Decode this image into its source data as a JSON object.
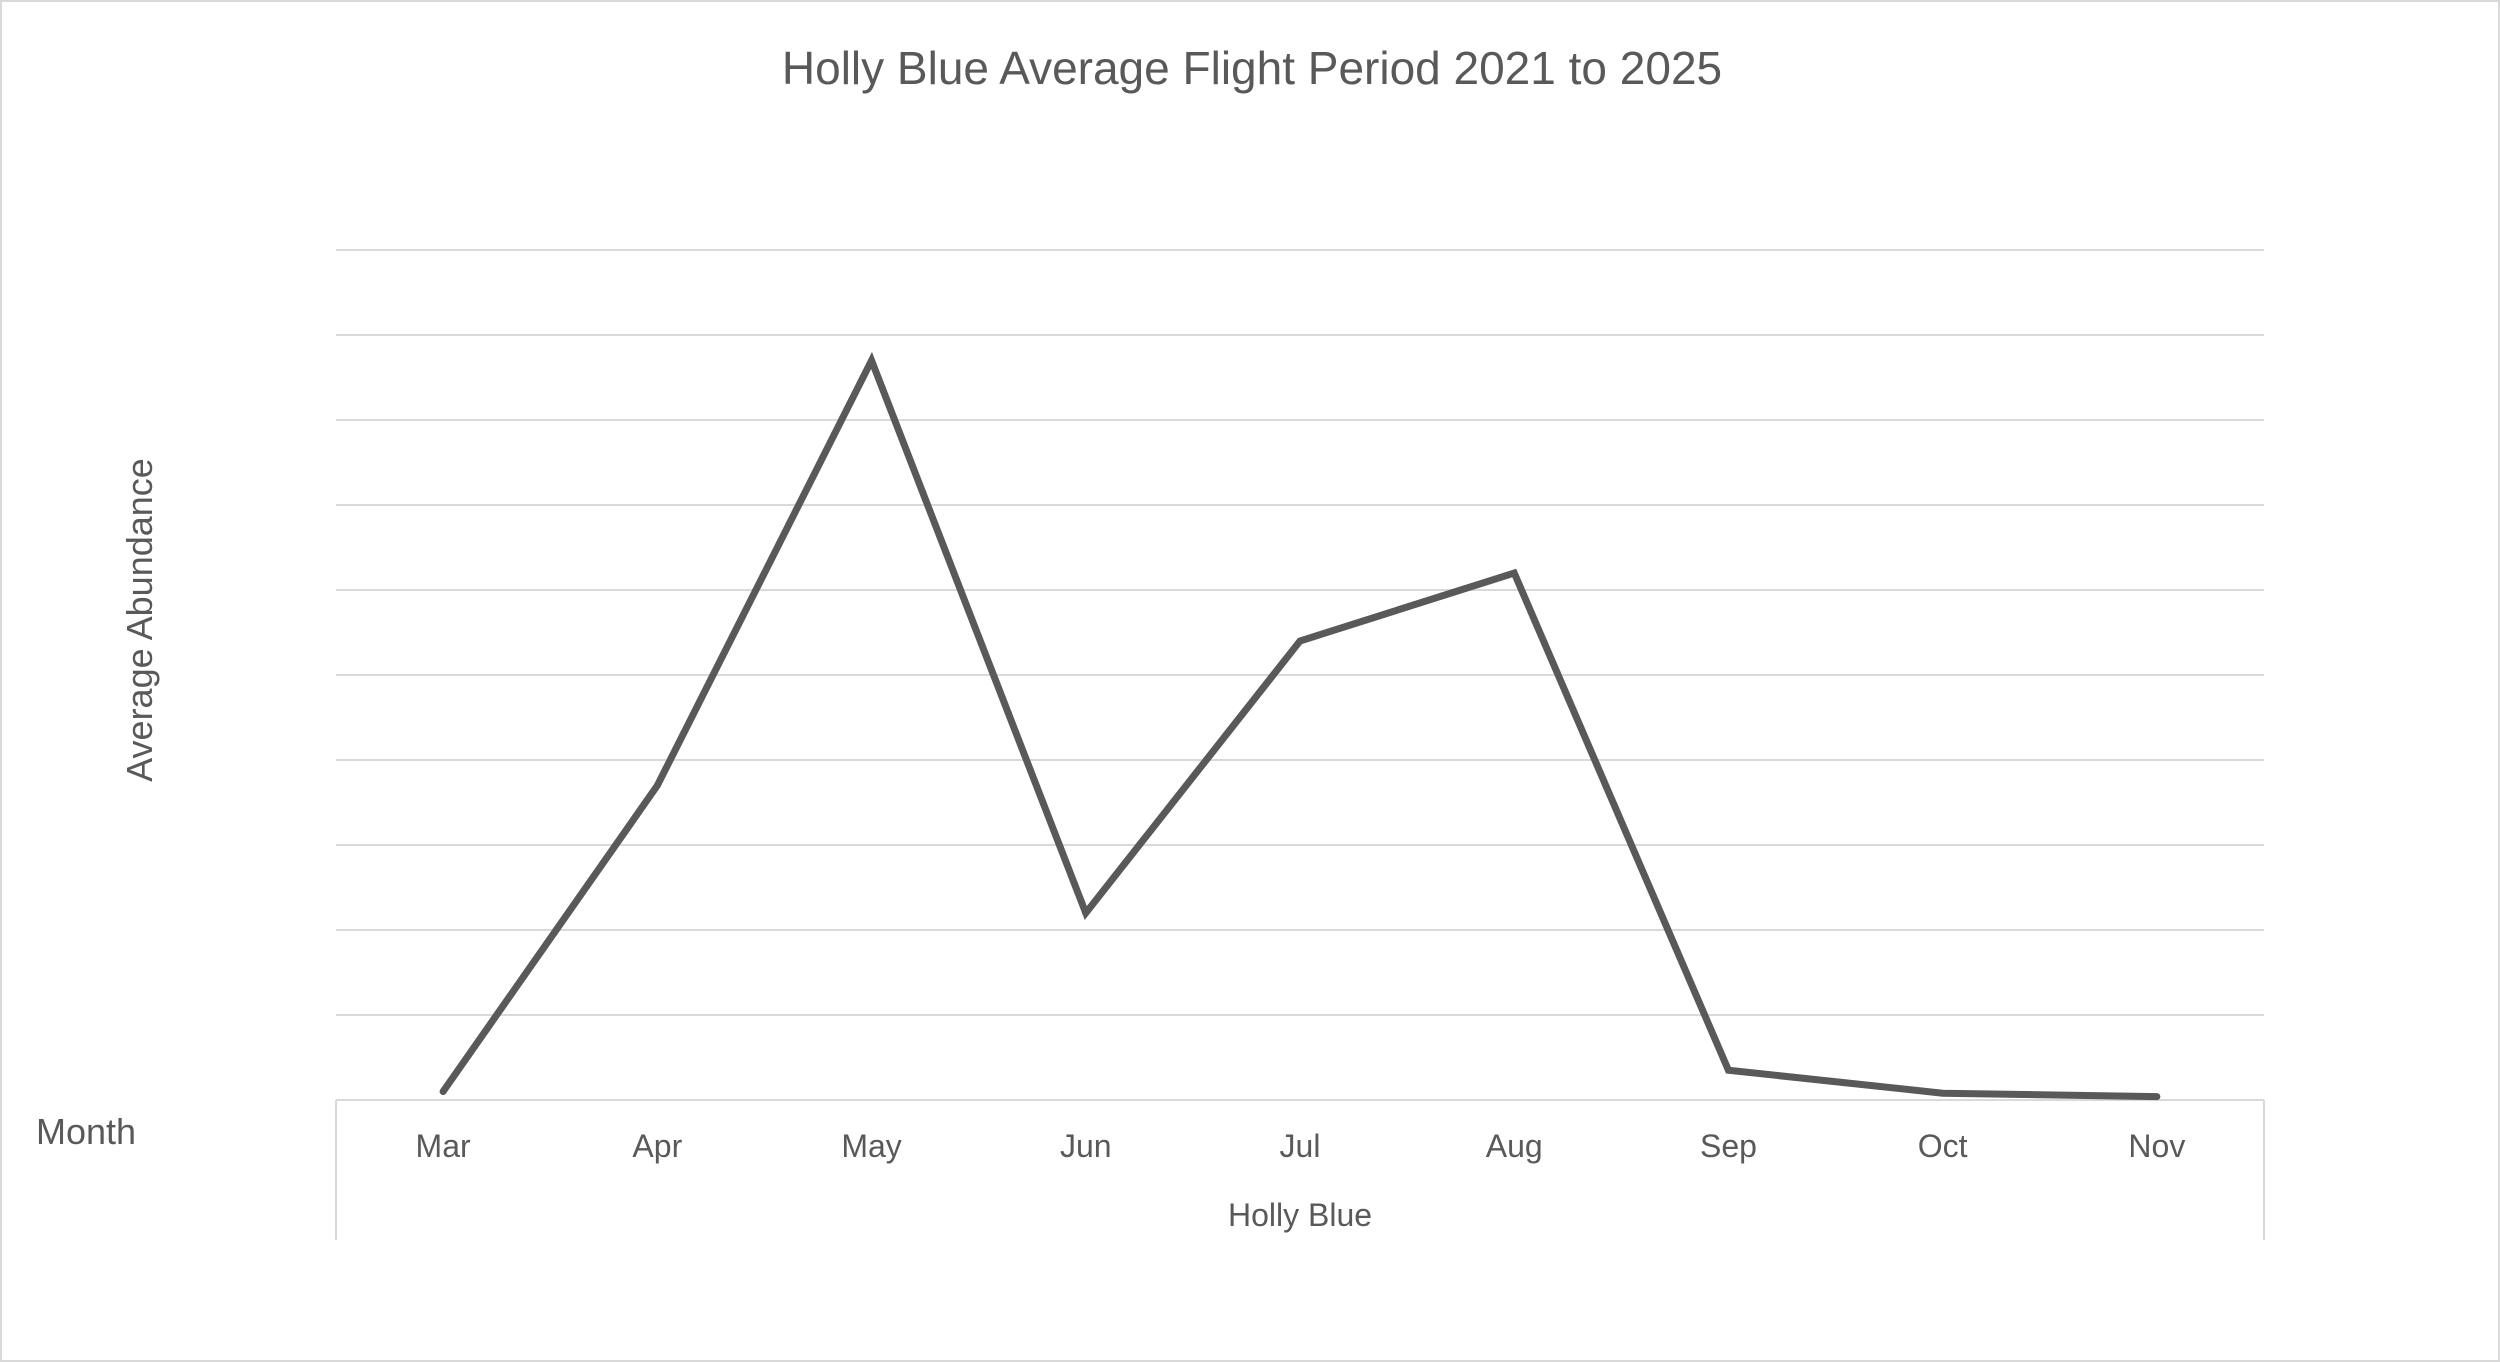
{
  "chart_data": {
    "type": "line",
    "title": "Holly Blue Average Flight Period 2021 to 2025",
    "ylabel": "Average Abundance",
    "row_field_label": "Month",
    "category_group_label": "Holly Blue",
    "categories": [
      "Mar",
      "Apr",
      "May",
      "Jun",
      "Jul",
      "Aug",
      "Sep",
      "Oct",
      "Nov"
    ],
    "series": [
      {
        "values": [
          0.1,
          3.7,
          8.7,
          2.2,
          5.4,
          6.2,
          0.35,
          0.08,
          0.04
        ]
      }
    ],
    "ylim": [
      0,
      10
    ],
    "gridline_count": 10,
    "grid": true,
    "y_tick_labels_shown": false,
    "legend": "none",
    "line_color": "#595959",
    "grid_color": "#d9d9d9"
  }
}
